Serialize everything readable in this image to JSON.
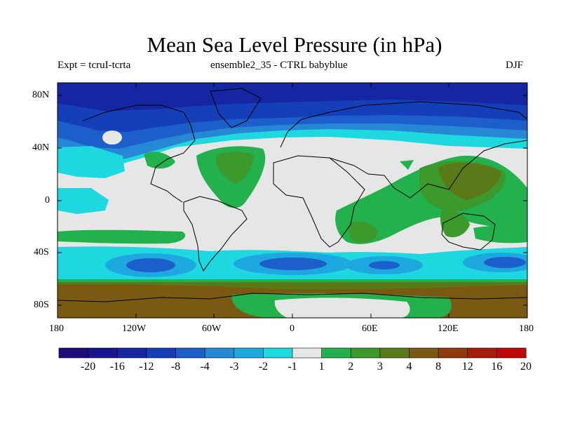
{
  "title": "Mean Sea Level Pressure (in hPa)",
  "experiment": "Expt = tcruI-tcrta",
  "ensemble": "ensemble2_35 - CTRL babyblue",
  "season": "DJF",
  "lat_labels": [
    "80N",
    "40N",
    "0",
    "40S",
    "80S"
  ],
  "lon_labels": [
    "180",
    "120W",
    "60W",
    "0",
    "60E",
    "120E",
    "180"
  ],
  "colorbar": {
    "labels": [
      "-20",
      "-16",
      "-12",
      "-8",
      "-4",
      "-3",
      "-2",
      "-1",
      "1",
      "2",
      "3",
      "4",
      "8",
      "12",
      "16",
      "20"
    ],
    "colors": [
      "#1f0a7a",
      "#1a158f",
      "#1626a3",
      "#143fb8",
      "#1c5fca",
      "#2688d4",
      "#1ea8e0",
      "#1ed8e0",
      "#e6e6e6",
      "#22b14c",
      "#3c9a2c",
      "#5a7a1a",
      "#7a5a12",
      "#8e3a0c",
      "#a61e08",
      "#c00808"
    ]
  },
  "palette": {
    "background": "#e6e6e6",
    "neg1": "#1ed8e0",
    "neg2": "#1ea8e0",
    "neg3": "#2688d4",
    "neg4": "#1c5fca",
    "neg8": "#143fb8",
    "neg12": "#1626a3",
    "pos1": "#22b14c",
    "pos2": "#3c9a2c",
    "pos3": "#5a7a1a",
    "pos4": "#7a5a12"
  }
}
